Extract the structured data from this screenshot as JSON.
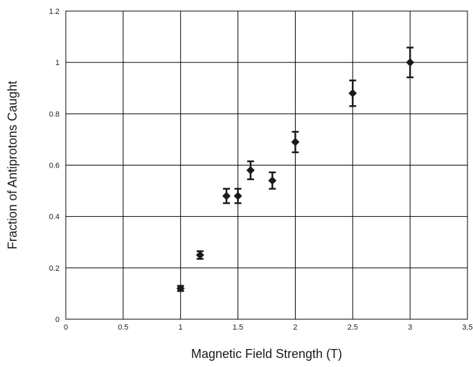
{
  "chart_data": {
    "type": "scatter",
    "title": "",
    "xlabel": "Magnetic Field Strength (T)",
    "ylabel": "Fraction of Antiprotons Caught",
    "xlim": [
      0,
      3.5
    ],
    "ylim": [
      0,
      1.2
    ],
    "x_ticks": [
      0,
      0.5,
      1,
      1.5,
      2,
      2.5,
      3,
      3.5
    ],
    "y_ticks": [
      0,
      0.2,
      0.4,
      0.6,
      0.8,
      1,
      1.2
    ],
    "x_tick_labels": [
      "0",
      "0.5",
      "1",
      "1.5",
      "2",
      "2.5",
      "3",
      "3.5"
    ],
    "y_tick_labels": [
      "0",
      "0.2",
      "0.4",
      "0.6",
      "0.8",
      "1",
      "1.2"
    ],
    "grid": true,
    "marker": "diamond",
    "colors": {
      "marker": "#1a1a1a",
      "grid": "#000000"
    },
    "points": [
      {
        "x": 1.0,
        "y": 0.12,
        "err": 0.01
      },
      {
        "x": 1.17,
        "y": 0.25,
        "err": 0.015
      },
      {
        "x": 1.4,
        "y": 0.48,
        "err": 0.028
      },
      {
        "x": 1.5,
        "y": 0.48,
        "err": 0.028
      },
      {
        "x": 1.61,
        "y": 0.58,
        "err": 0.035
      },
      {
        "x": 1.8,
        "y": 0.54,
        "err": 0.032
      },
      {
        "x": 2.0,
        "y": 0.69,
        "err": 0.04
      },
      {
        "x": 2.5,
        "y": 0.88,
        "err": 0.05
      },
      {
        "x": 3.0,
        "y": 1.0,
        "err": 0.058
      }
    ]
  }
}
